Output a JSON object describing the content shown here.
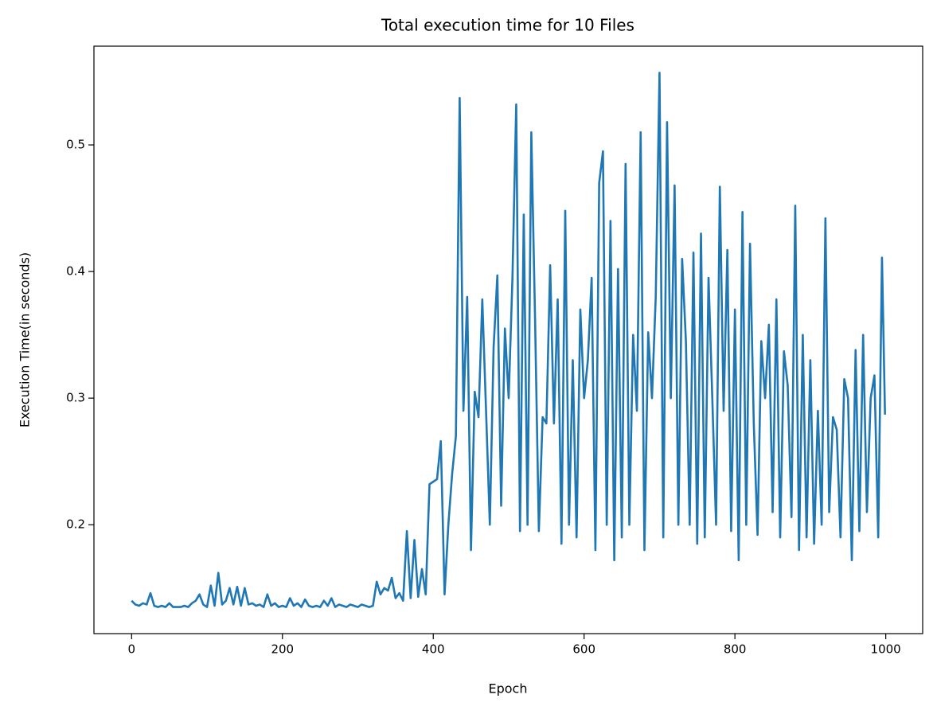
{
  "chart_data": {
    "type": "line",
    "title": "Total execution time for 10 Files",
    "xlabel": "Epoch",
    "ylabel": "Execution Time(in seconds)",
    "xlim": [
      -49.95,
      1048.95
    ],
    "ylim": [
      0.114,
      0.578
    ],
    "xticks": [
      0,
      200,
      400,
      600,
      800,
      1000
    ],
    "yticks": [
      0.2,
      0.3,
      0.4,
      0.5
    ],
    "series": [
      {
        "color": "#1f77b4",
        "x": [
          0,
          5,
          10,
          15,
          20,
          25,
          30,
          35,
          40,
          45,
          50,
          55,
          60,
          65,
          70,
          75,
          80,
          85,
          90,
          95,
          100,
          105,
          110,
          115,
          120,
          125,
          130,
          135,
          140,
          145,
          150,
          155,
          160,
          165,
          170,
          175,
          180,
          185,
          190,
          195,
          200,
          205,
          210,
          215,
          220,
          225,
          230,
          235,
          240,
          245,
          250,
          255,
          260,
          265,
          270,
          275,
          280,
          285,
          290,
          295,
          300,
          305,
          310,
          315,
          320,
          325,
          330,
          335,
          340,
          345,
          350,
          355,
          360,
          365,
          370,
          375,
          380,
          385,
          390,
          395,
          400,
          405,
          410,
          415,
          420,
          425,
          430,
          435,
          440,
          445,
          450,
          455,
          460,
          465,
          470,
          475,
          480,
          485,
          490,
          495,
          500,
          505,
          510,
          515,
          520,
          525,
          530,
          535,
          540,
          545,
          550,
          555,
          560,
          565,
          570,
          575,
          580,
          585,
          590,
          595,
          600,
          605,
          610,
          615,
          620,
          625,
          630,
          635,
          640,
          645,
          650,
          655,
          660,
          665,
          670,
          675,
          680,
          685,
          690,
          695,
          700,
          705,
          710,
          715,
          720,
          725,
          730,
          735,
          740,
          745,
          750,
          755,
          760,
          765,
          770,
          775,
          780,
          785,
          790,
          795,
          800,
          805,
          810,
          815,
          820,
          825,
          830,
          835,
          840,
          845,
          850,
          855,
          860,
          865,
          870,
          875,
          880,
          885,
          890,
          895,
          900,
          905,
          910,
          915,
          920,
          925,
          930,
          935,
          940,
          945,
          950,
          955,
          960,
          965,
          970,
          975,
          980,
          985,
          990,
          995,
          999
        ],
        "values": [
          0.14,
          0.137,
          0.136,
          0.138,
          0.137,
          0.146,
          0.136,
          0.135,
          0.136,
          0.135,
          0.138,
          0.135,
          0.135,
          0.135,
          0.136,
          0.135,
          0.138,
          0.14,
          0.145,
          0.137,
          0.135,
          0.152,
          0.136,
          0.162,
          0.137,
          0.14,
          0.15,
          0.137,
          0.151,
          0.136,
          0.15,
          0.137,
          0.138,
          0.136,
          0.137,
          0.135,
          0.145,
          0.136,
          0.138,
          0.135,
          0.136,
          0.135,
          0.142,
          0.136,
          0.138,
          0.135,
          0.141,
          0.136,
          0.135,
          0.136,
          0.135,
          0.14,
          0.136,
          0.142,
          0.135,
          0.137,
          0.136,
          0.135,
          0.137,
          0.136,
          0.135,
          0.137,
          0.136,
          0.135,
          0.136,
          0.155,
          0.145,
          0.15,
          0.148,
          0.158,
          0.142,
          0.146,
          0.14,
          0.195,
          0.142,
          0.188,
          0.143,
          0.165,
          0.145,
          0.232,
          0.234,
          0.236,
          0.266,
          0.145,
          0.2,
          0.24,
          0.27,
          0.537,
          0.29,
          0.38,
          0.18,
          0.305,
          0.285,
          0.378,
          0.29,
          0.2,
          0.34,
          0.397,
          0.215,
          0.355,
          0.3,
          0.395,
          0.532,
          0.195,
          0.445,
          0.2,
          0.51,
          0.362,
          0.195,
          0.285,
          0.28,
          0.405,
          0.28,
          0.378,
          0.185,
          0.448,
          0.2,
          0.33,
          0.19,
          0.37,
          0.3,
          0.33,
          0.395,
          0.18,
          0.47,
          0.495,
          0.2,
          0.44,
          0.172,
          0.402,
          0.19,
          0.485,
          0.2,
          0.35,
          0.29,
          0.51,
          0.18,
          0.352,
          0.3,
          0.38,
          0.557,
          0.19,
          0.518,
          0.3,
          0.468,
          0.2,
          0.41,
          0.345,
          0.2,
          0.415,
          0.185,
          0.43,
          0.19,
          0.395,
          0.3,
          0.2,
          0.467,
          0.29,
          0.417,
          0.195,
          0.37,
          0.172,
          0.447,
          0.2,
          0.422,
          0.28,
          0.192,
          0.345,
          0.3,
          0.358,
          0.21,
          0.378,
          0.19,
          0.337,
          0.31,
          0.206,
          0.452,
          0.18,
          0.35,
          0.19,
          0.33,
          0.185,
          0.29,
          0.2,
          0.442,
          0.21,
          0.285,
          0.275,
          0.19,
          0.315,
          0.3,
          0.172,
          0.338,
          0.195,
          0.35,
          0.21,
          0.3,
          0.318,
          0.19,
          0.411,
          0.287
        ]
      }
    ]
  }
}
